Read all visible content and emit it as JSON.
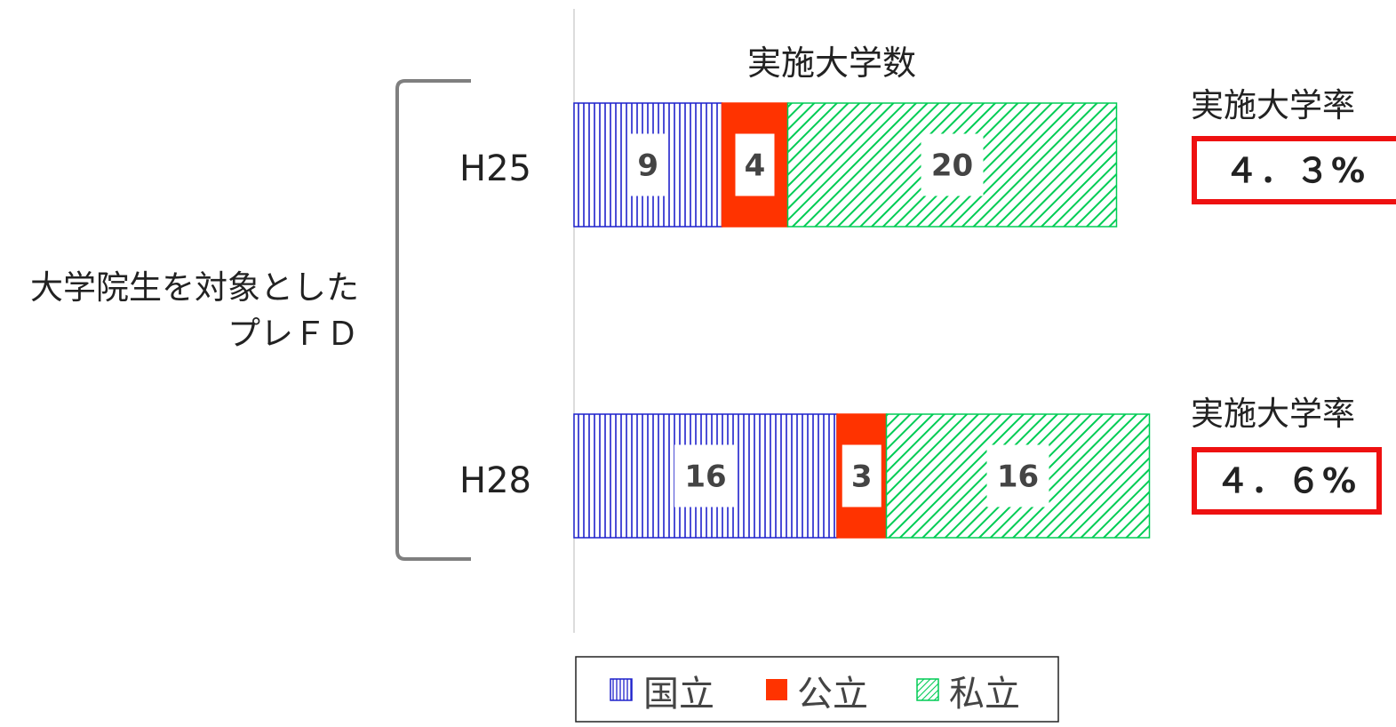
{
  "chart_data": {
    "type": "bar",
    "orientation": "horizontal",
    "stacked": true,
    "title": "実施大学数",
    "group_label": [
      "大学院生を対象とした",
      "プレＦＤ"
    ],
    "categories": [
      "H25",
      "H28"
    ],
    "series": [
      {
        "name": "国立",
        "values": [
          9,
          16
        ],
        "color": "#1f22cc",
        "pattern": "vertical-lines"
      },
      {
        "name": "公立",
        "values": [
          4,
          3
        ],
        "color": "#ff3300",
        "pattern": "solid"
      },
      {
        "name": "私立",
        "values": [
          20,
          16
        ],
        "color": "#00cc55",
        "pattern": "diagonal-lines"
      }
    ],
    "rate_label": "実施大学率",
    "rates": [
      "４．３%",
      "４．６%"
    ],
    "rate_color": "#ee1111",
    "legend_position": "bottom",
    "grid": false
  }
}
